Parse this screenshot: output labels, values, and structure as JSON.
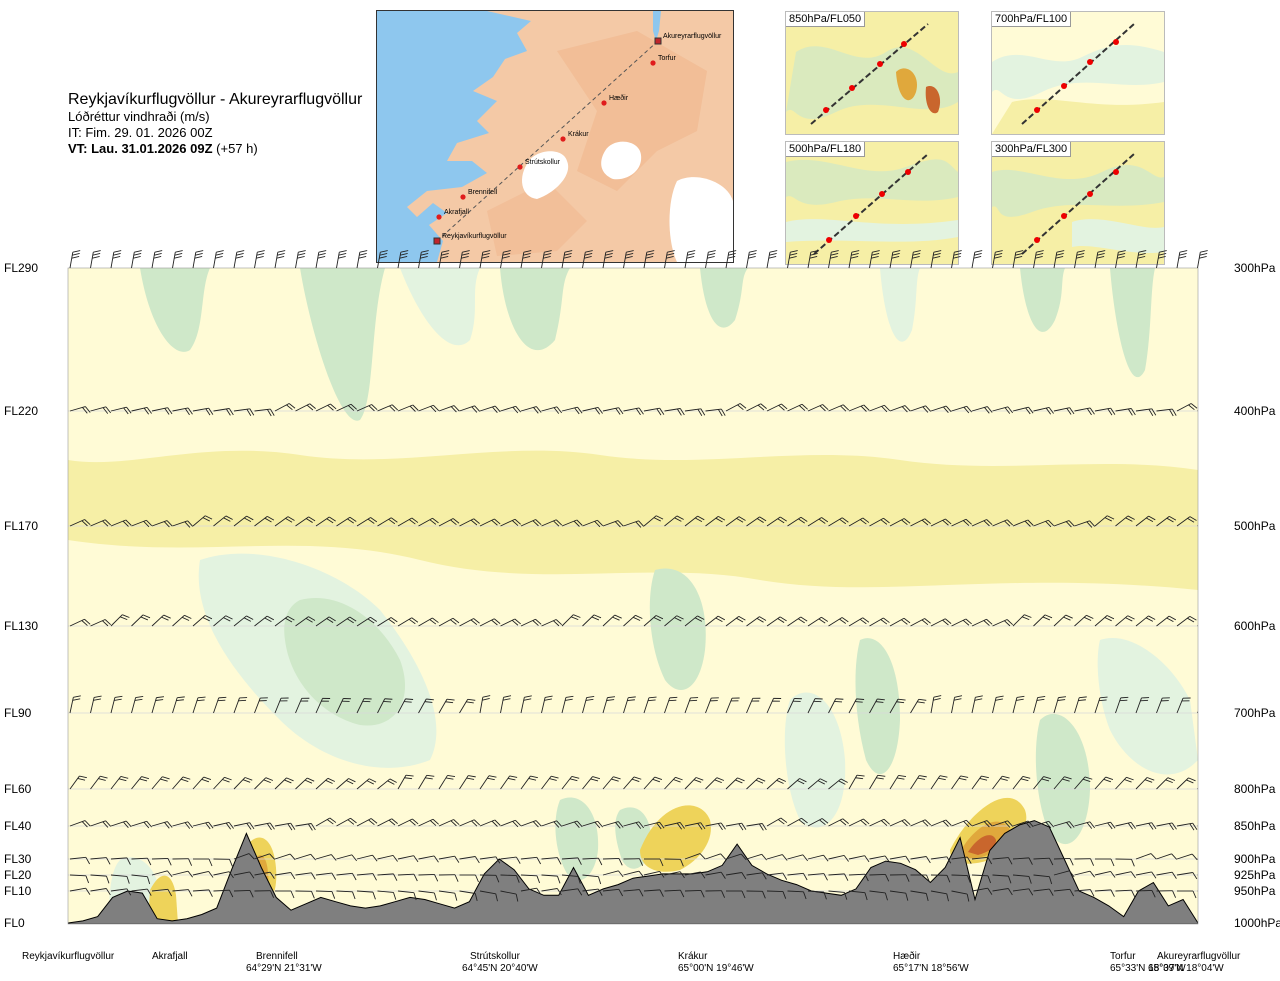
{
  "header": {
    "route_title": "Reykjavíkurflugvöllur - Akureyrarflugvöllur",
    "subtitle": "Lóðréttur vindhraði (m/s)",
    "issue_time": "IT: Fim. 29. 01. 2026 00Z",
    "valid_label": "VT: Lau. 31.01.2026 09Z",
    "valid_offset": "(+57 h)"
  },
  "route_map": {
    "waypoints": [
      {
        "name": "Akureyrarflugvöllur",
        "airport": true
      },
      {
        "name": "Torfur",
        "airport": false
      },
      {
        "name": "Hæðir",
        "airport": false
      },
      {
        "name": "Krákur",
        "airport": false
      },
      {
        "name": "Strútskollur",
        "airport": false
      },
      {
        "name": "Brennifell",
        "airport": false
      },
      {
        "name": "Akrafjall",
        "airport": false
      },
      {
        "name": "Reykjavíkurflugvöllur",
        "airport": true
      }
    ]
  },
  "level_maps": [
    {
      "label": "850hPa/FL050"
    },
    {
      "label": "700hPa/FL100"
    },
    {
      "label": "500hPa/FL180"
    },
    {
      "label": "300hPa/FL300"
    }
  ],
  "colors": {
    "strong_down": "#cfe8c9",
    "moderate_down": "#e3f3e0",
    "weak_down": "#f2fbf0",
    "near_zero": "#fffbd6",
    "weak_up": "#f6efa6",
    "moderate_up": "#eed35a",
    "strong_up": "#e0a83c",
    "very_strong_up": "#c9662d",
    "terrain": "#7f7f7f",
    "sea": "#8ec7ee",
    "land": "#f4c9a6"
  },
  "chart_data": {
    "type": "heatmap",
    "variable": "Lóðréttur vindhraði (m/s)",
    "y_levels": [
      {
        "fl": "FL290",
        "hpa": "300hPa"
      },
      {
        "fl": "FL220",
        "hpa": "400hPa"
      },
      {
        "fl": "FL170",
        "hpa": "500hPa"
      },
      {
        "fl": "FL130",
        "hpa": "600hPa"
      },
      {
        "fl": "FL90",
        "hpa": "700hPa"
      },
      {
        "fl": "FL60",
        "hpa": "800hPa"
      },
      {
        "fl": "FL40",
        "hpa": "850hPa"
      },
      {
        "fl": "FL30",
        "hpa": "900hPa"
      },
      {
        "fl": "FL20",
        "hpa": "925hPa"
      },
      {
        "fl": "FL10",
        "hpa": "950hPa"
      },
      {
        "fl": "FL0",
        "hpa": "1000hPa"
      }
    ],
    "route_points": [
      {
        "name": "Reykjavíkurflugvöllur",
        "coord": ""
      },
      {
        "name": "Akrafjall",
        "coord": ""
      },
      {
        "name": "Brennifell",
        "coord": "64°29'N 21°31'W"
      },
      {
        "name": "Strútskollur",
        "coord": "64°45'N 20°40'W"
      },
      {
        "name": "Krákur",
        "coord": "65°00'N 19°46'W"
      },
      {
        "name": "Hæðir",
        "coord": "65°17'N 18°56'W"
      },
      {
        "name": "Torfur",
        "coord": "65°33'N 18°07'W"
      },
      {
        "name": "Akureyrarflugvöllur",
        "coord": "65°39'N 18°04'W"
      }
    ],
    "terrain_profile_ft": [
      0,
      100,
      300,
      1200,
      1500,
      1400,
      200,
      100,
      200,
      400,
      700,
      2500,
      4200,
      2600,
      1200,
      600,
      900,
      1200,
      1000,
      800,
      700,
      800,
      1000,
      1200,
      1100,
      900,
      700,
      1000,
      2300,
      3000,
      2500,
      1600,
      1300,
      1300,
      2600,
      1300,
      1600,
      1800,
      2100,
      2200,
      2300,
      2300,
      2300,
      2400,
      2700,
      3700,
      2700,
      2300,
      2000,
      1800,
      1500,
      1400,
      1300,
      1600,
      2600,
      2900,
      2800,
      2500,
      1900,
      2600,
      4000,
      1100,
      3400,
      4200,
      4600,
      4800,
      4500,
      3000,
      1500,
      1200,
      800,
      300,
      1500,
      1900,
      800,
      1100,
      0
    ],
    "legend": "none",
    "grid": true
  }
}
